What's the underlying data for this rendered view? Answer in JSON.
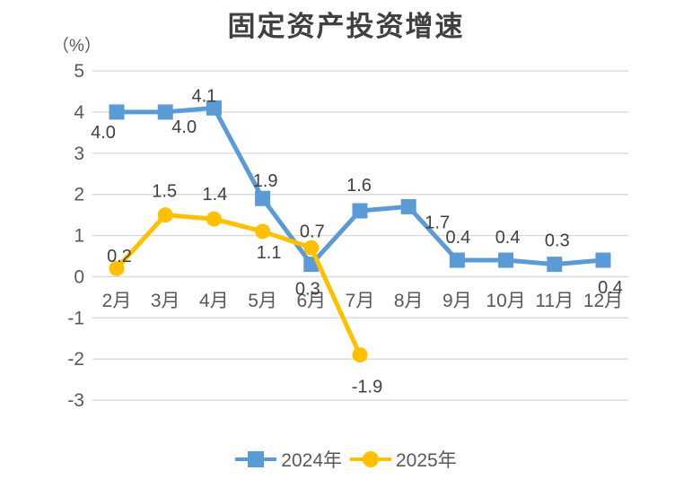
{
  "title": "固定资产投资增速",
  "y_axis": {
    "unit_label": "（%）"
  },
  "colors": {
    "series_2024": "#5B9BD5",
    "series_2025": "#FFC000",
    "gridline": "#D9D9D9",
    "axis_text": "#595959",
    "data_label": "#404040",
    "title_text": "#404040",
    "legend_text": "#595959",
    "background": "#FFFFFF"
  },
  "legend": {
    "items": [
      {
        "label": "2024年",
        "marker": "square",
        "color": "#5B9BD5"
      },
      {
        "label": "2025年",
        "marker": "circle",
        "color": "#FFC000"
      }
    ],
    "position": "bottom"
  },
  "chart_data": {
    "type": "line",
    "title": "固定资产投资增速",
    "unit": "%",
    "categories": [
      "2月",
      "3月",
      "4月",
      "5月",
      "6月",
      "7月",
      "8月",
      "9月",
      "10月",
      "11月",
      "12月"
    ],
    "y_ticks": [
      5,
      4,
      3,
      2,
      1,
      0,
      -1,
      -2,
      -3
    ],
    "ylim": [
      -3,
      5
    ],
    "grid": true,
    "legend_position": "bottom",
    "series": [
      {
        "name": "2024年",
        "marker": "square",
        "color": "#5B9BD5",
        "values": [
          4.0,
          4.0,
          4.1,
          1.9,
          0.3,
          1.6,
          1.7,
          0.4,
          0.4,
          0.3,
          0.4
        ],
        "labels": [
          "4.0",
          "4.0",
          "4.1",
          "1.9",
          "0.3",
          "1.6",
          "1.7",
          "0.4",
          "0.4",
          "0.3",
          "0.4"
        ],
        "label_offsets": [
          [
            -15,
            22
          ],
          [
            21,
            16
          ],
          [
            -11,
            -14
          ],
          [
            3,
            -20
          ],
          [
            -4,
            27
          ],
          [
            -1,
            -29
          ],
          [
            32,
            17
          ],
          [
            1,
            -26
          ],
          [
            2,
            -26
          ],
          [
            3,
            -27
          ],
          [
            8,
            30
          ]
        ]
      },
      {
        "name": "2025年",
        "marker": "circle",
        "color": "#FFC000",
        "values": [
          0.2,
          1.5,
          1.4,
          1.1,
          0.7,
          -1.9
        ],
        "labels": [
          "0.2",
          "1.5",
          "1.4",
          "1.1",
          "0.7",
          "-1.9"
        ],
        "label_offsets": [
          [
            3,
            -14
          ],
          [
            -1,
            -27
          ],
          [
            1,
            -28
          ],
          [
            7,
            23
          ],
          [
            1,
            -19
          ],
          [
            8,
            35
          ]
        ]
      }
    ]
  }
}
